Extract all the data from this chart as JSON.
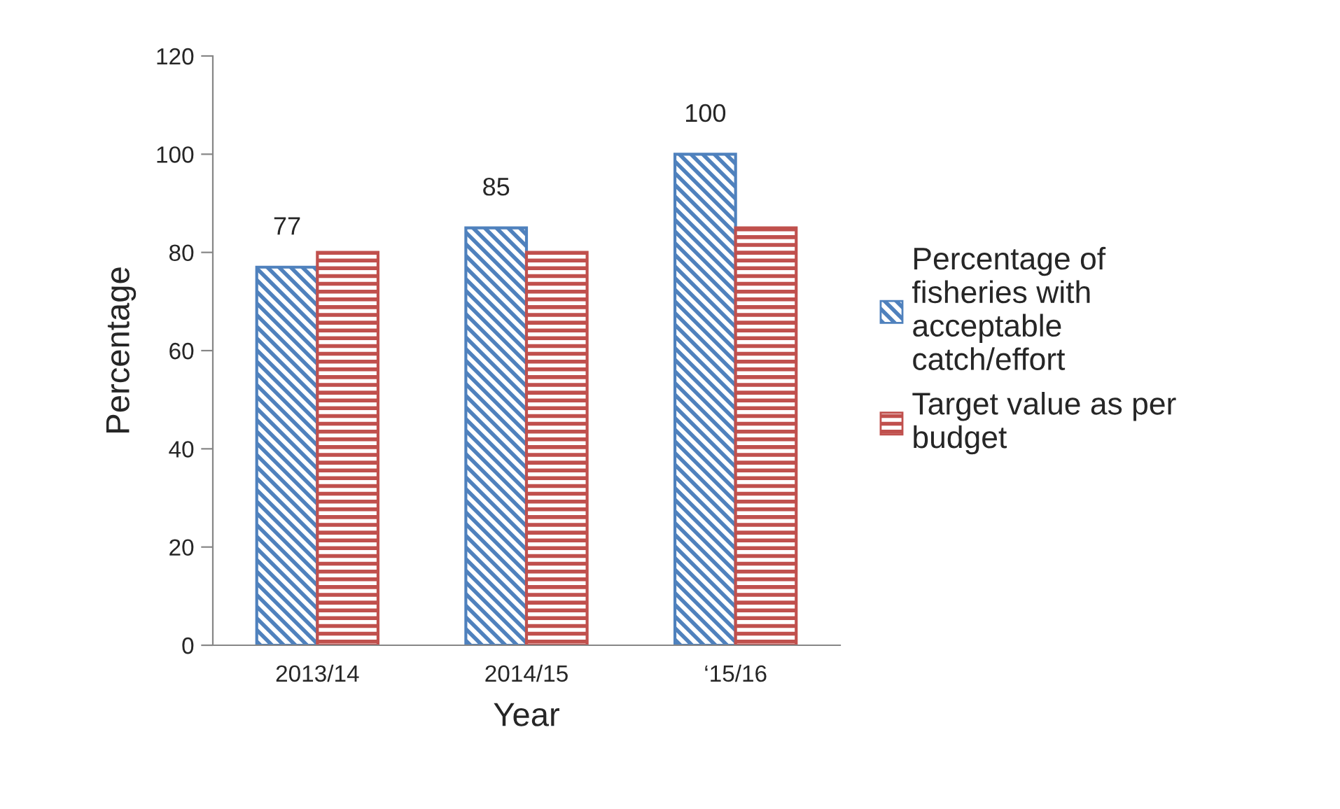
{
  "chart_data": {
    "type": "bar",
    "xlabel": "Year",
    "ylabel": "Percentage",
    "categories": [
      "2013/14",
      "2014/15",
      "‘15/16"
    ],
    "series": [
      {
        "name": "Percentage of fisheries with acceptable catch/effort",
        "color": "#4f81bd",
        "values": [
          77,
          85,
          100
        ],
        "value_labels": [
          "77",
          "85",
          "100"
        ]
      },
      {
        "name": "Target value as per budget",
        "color": "#c0504d",
        "values": [
          80,
          80,
          85
        ]
      }
    ],
    "ylim": [
      0,
      120
    ],
    "yticks": [
      0,
      20,
      40,
      60,
      80,
      100,
      120
    ],
    "grid": false,
    "legend": "right"
  }
}
